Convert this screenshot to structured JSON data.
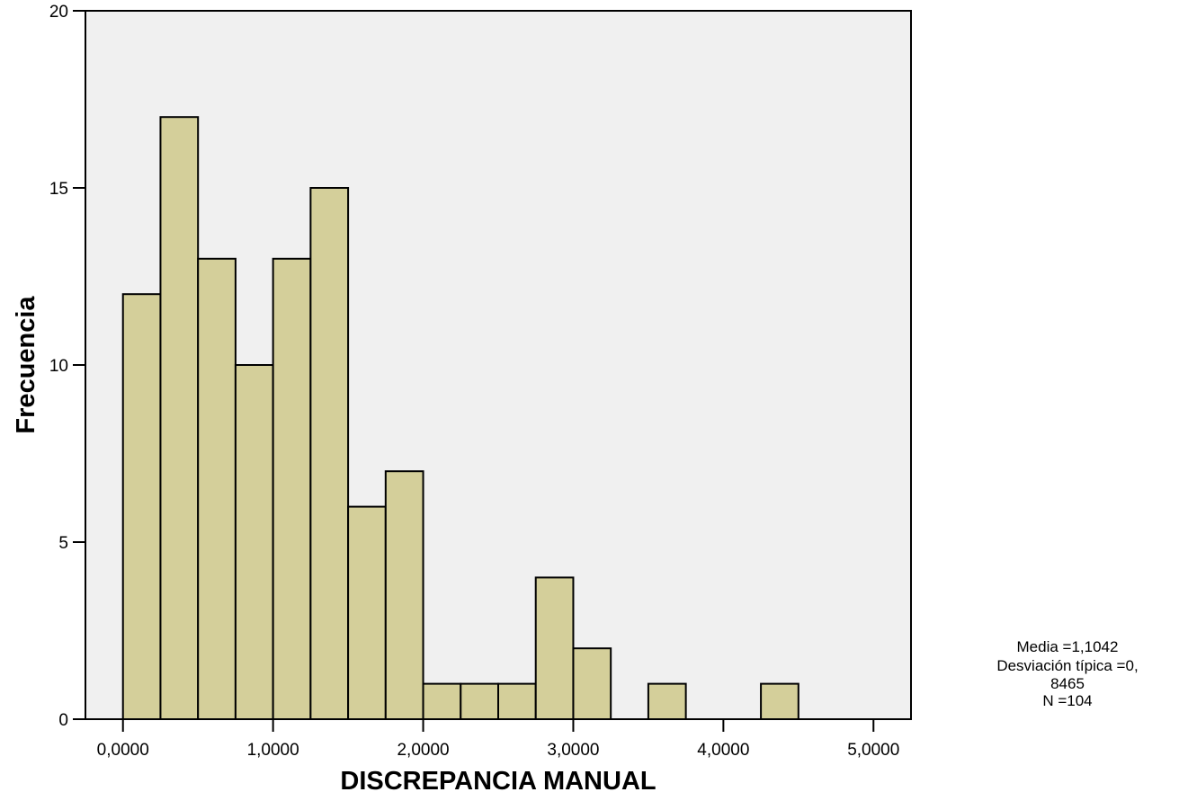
{
  "chart_data": {
    "type": "bar",
    "subtype": "histogram",
    "xlabel": "DISCREPANCIA MANUAL",
    "ylabel": "Frecuencia",
    "xlim": [
      -0.25,
      5.25
    ],
    "ylim": [
      0,
      20.0
    ],
    "x_ticks": [
      0,
      1,
      2,
      3,
      4,
      5
    ],
    "x_tick_labels": [
      "0,0000",
      "1,0000",
      "2,0000",
      "3,0000",
      "4,0000",
      "5,0000"
    ],
    "y_ticks": [
      0,
      5,
      10,
      15,
      20
    ],
    "y_tick_labels": [
      "0",
      "5",
      "10",
      "15",
      "20"
    ],
    "bin_width": 0.25,
    "bins": [
      {
        "start": 0.0,
        "count": 12
      },
      {
        "start": 0.25,
        "count": 17
      },
      {
        "start": 0.5,
        "count": 13
      },
      {
        "start": 0.75,
        "count": 10
      },
      {
        "start": 1.0,
        "count": 13
      },
      {
        "start": 1.25,
        "count": 15
      },
      {
        "start": 1.5,
        "count": 6
      },
      {
        "start": 1.75,
        "count": 7
      },
      {
        "start": 2.0,
        "count": 1
      },
      {
        "start": 2.25,
        "count": 1
      },
      {
        "start": 2.5,
        "count": 1
      },
      {
        "start": 2.75,
        "count": 4
      },
      {
        "start": 3.0,
        "count": 2
      },
      {
        "start": 3.5,
        "count": 1
      },
      {
        "start": 4.25,
        "count": 1
      }
    ],
    "stats_lines": [
      "Media =1,1042",
      "Desviación típica =0,",
      "8465",
      "N =104"
    ],
    "grid": false,
    "colors": {
      "bar_fill": "#d4cf9a",
      "bar_stroke": "#000000",
      "plot_background": "#f0f0f0"
    }
  }
}
